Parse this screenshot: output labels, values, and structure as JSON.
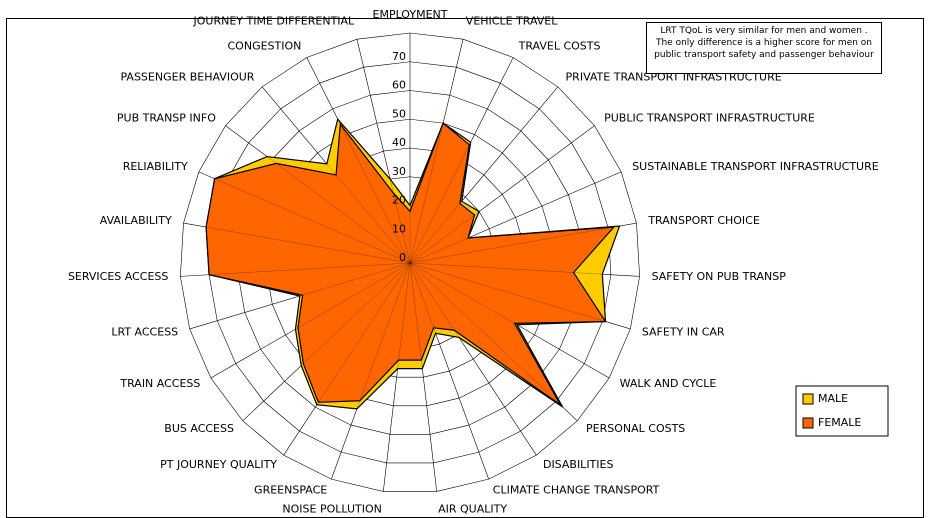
{
  "chart_data": {
    "type": "radar",
    "categories": [
      "EMPLOYMENT",
      "VEHICLE TRAVEL",
      "TRAVEL COSTS",
      "PRIVATE TRANSPORT INFRASTRUCTURE",
      "PUBLIC TRANSPORT INFRASTRUCTURE",
      "SUSTAINABLE TRANSPORT INFRASTRUCTURE",
      "TRANSPORT CHOICE",
      "SAFETY ON PUB TRANSP",
      "SAFETY IN CAR",
      "WALK AND CYCLE",
      "PERSONAL COSTS",
      "DISABILITIES",
      "CLIMATE CHANGE TRANSPORT",
      "AIR QUALITY",
      "NOISE POLLUTION",
      "GREENSPACE",
      "PT JOURNEY QUALITY",
      "BUS ACCESS",
      "TRAIN ACCESS",
      "LRT ACCESS",
      "SERVICES ACCESS",
      "AVAILABILITY",
      "RELIABILITY",
      "PUB TRANSP INFO",
      "PASSENGER BEHAVIOUR",
      "CONGESTION",
      "JOURNEY TIME DIFFERENTIAL"
    ],
    "series": [
      {
        "name": "MALE",
        "color": "#ffcc00",
        "values": [
          20,
          50,
          47,
          28,
          30,
          22,
          74,
          67,
          71,
          43,
          73,
          31,
          26,
          37,
          37,
          54,
          59,
          52,
          46,
          40,
          70,
          72,
          74,
          62,
          45,
          56,
          30
        ]
      },
      {
        "name": "FEMALE",
        "color": "#ff6600",
        "values": [
          18,
          50,
          46,
          27,
          28,
          22,
          72,
          57,
          71,
          42,
          72,
          28,
          24,
          34,
          34,
          51,
          58,
          51,
          45,
          39,
          70,
          72,
          74,
          58,
          40,
          54,
          25
        ]
      }
    ],
    "ylim": [
      0,
      80
    ],
    "yticks": [
      0,
      10,
      20,
      30,
      40,
      50,
      60,
      70
    ],
    "annotation": "LRT TQoL is very similar for men and women . The only difference is a higher score for men on public transport safety and passenger behaviour",
    "legend": "right"
  }
}
